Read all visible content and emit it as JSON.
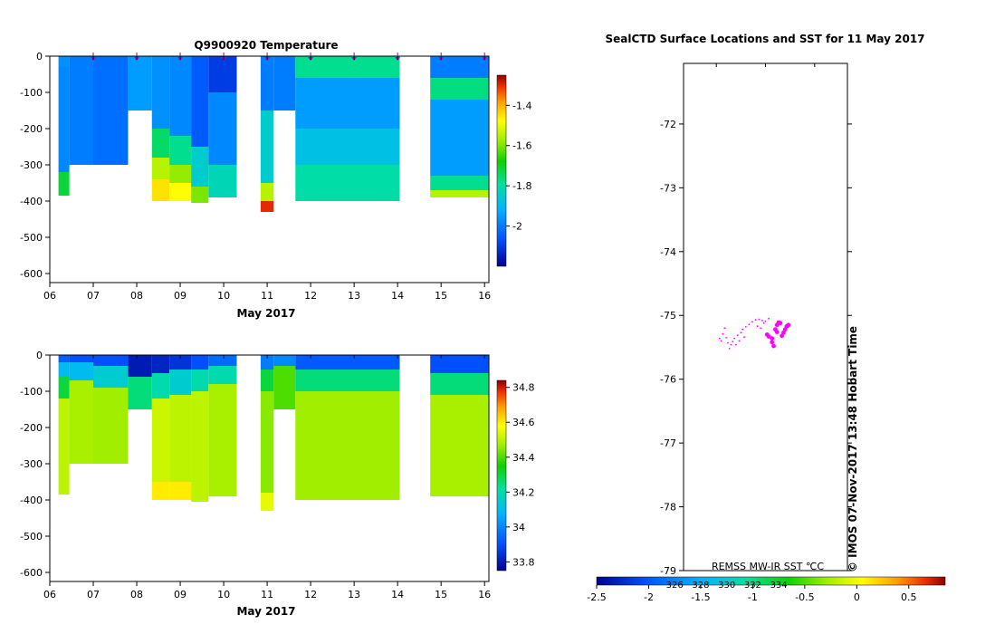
{
  "chart_data": [
    {
      "type": "heatmap",
      "title": "Q9900920  Temperature",
      "xlabel": "May 2017",
      "ylabel": "",
      "x_ticks": [
        "06",
        "07",
        "08",
        "09",
        "10",
        "11",
        "12",
        "13",
        "14",
        "15",
        "16"
      ],
      "x_range": [
        6.0,
        16.1
      ],
      "y_ticks": [
        "0",
        "-100",
        "-200",
        "-300",
        "-400",
        "-500",
        "-600"
      ],
      "y_range": [
        -625,
        0
      ],
      "colorbar_ticks": [
        "-1.4",
        "-1.6",
        "-1.8",
        "-2"
      ],
      "colorbar_range": [
        -2.2,
        -1.25
      ],
      "profile_markers": [
        7.0,
        8.0,
        9.0,
        10.0,
        11.0,
        12.0,
        13.0,
        14.0,
        15.0,
        16.0
      ],
      "profiles": [
        {
          "x0": 6.2,
          "x1": 6.45,
          "max_depth": 385,
          "layers": [
            [
              0,
              30,
              -1.97
            ],
            [
              30,
              320,
              -1.98
            ],
            [
              320,
              385,
              -1.72
            ]
          ]
        },
        {
          "x0": 6.45,
          "x1": 7.0,
          "max_depth": 300,
          "layers": [
            [
              0,
              300,
              -2.0
            ]
          ]
        },
        {
          "x0": 7.0,
          "x1": 7.8,
          "max_depth": 300,
          "layers": [
            [
              0,
              300,
              -2.02
            ]
          ]
        },
        {
          "x0": 7.8,
          "x1": 8.35,
          "max_depth": 150,
          "layers": [
            [
              0,
              150,
              -1.95
            ]
          ]
        },
        {
          "x0": 8.35,
          "x1": 8.75,
          "max_depth": 400,
          "layers": [
            [
              0,
              200,
              -1.97
            ],
            [
              200,
              280,
              -1.75
            ],
            [
              280,
              340,
              -1.55
            ],
            [
              340,
              400,
              -1.45
            ]
          ]
        },
        {
          "x0": 8.75,
          "x1": 9.25,
          "max_depth": 400,
          "layers": [
            [
              0,
              220,
              -1.98
            ],
            [
              220,
              300,
              -1.78
            ],
            [
              300,
              350,
              -1.58
            ],
            [
              350,
              400,
              -1.48
            ]
          ]
        },
        {
          "x0": 9.25,
          "x1": 9.65,
          "max_depth": 405,
          "layers": [
            [
              0,
              250,
              -2.05
            ],
            [
              250,
              360,
              -1.85
            ],
            [
              360,
              405,
              -1.6
            ]
          ]
        },
        {
          "x0": 9.65,
          "x1": 10.3,
          "max_depth": 390,
          "layers": [
            [
              0,
              100,
              -2.1
            ],
            [
              100,
              300,
              -1.98
            ],
            [
              300,
              390,
              -1.82
            ]
          ]
        },
        {
          "x0": 10.85,
          "x1": 11.15,
          "max_depth": 430,
          "layers": [
            [
              0,
              150,
              -2.0
            ],
            [
              150,
              350,
              -1.85
            ],
            [
              350,
              400,
              -1.55
            ],
            [
              400,
              430,
              -1.3
            ]
          ]
        },
        {
          "x0": 11.15,
          "x1": 11.65,
          "max_depth": 150,
          "layers": [
            [
              0,
              150,
              -2.0
            ]
          ]
        },
        {
          "x0": 11.65,
          "x1": 14.05,
          "max_depth": 400,
          "layers": [
            [
              0,
              60,
              -1.78
            ],
            [
              60,
              200,
              -1.95
            ],
            [
              200,
              300,
              -1.88
            ],
            [
              300,
              400,
              -1.8
            ]
          ]
        },
        {
          "x0": 14.75,
          "x1": 16.15,
          "max_depth": 390,
          "layers": [
            [
              0,
              60,
              -2.0
            ],
            [
              60,
              120,
              -1.77
            ],
            [
              120,
              330,
              -1.95
            ],
            [
              330,
              370,
              -1.78
            ],
            [
              370,
              390,
              -1.55
            ]
          ]
        }
      ]
    },
    {
      "type": "heatmap",
      "title": "",
      "xlabel": "May 2017",
      "ylabel": "",
      "x_ticks": [
        "06",
        "07",
        "08",
        "09",
        "10",
        "11",
        "12",
        "13",
        "14",
        "15",
        "16"
      ],
      "x_range": [
        6.0,
        16.1
      ],
      "y_ticks": [
        "0",
        "-100",
        "-200",
        "-300",
        "-400",
        "-500",
        "-600"
      ],
      "y_range": [
        -625,
        0
      ],
      "colorbar_ticks": [
        "34.8",
        "34.6",
        "34.4",
        "34.2",
        "34",
        "33.8"
      ],
      "colorbar_range": [
        33.75,
        34.84
      ],
      "profiles": [
        {
          "x0": 6.2,
          "x1": 6.45,
          "max_depth": 385,
          "layers": [
            [
              0,
              20,
              33.93
            ],
            [
              20,
              60,
              34.1
            ],
            [
              60,
              120,
              34.3
            ],
            [
              120,
              385,
              34.5
            ]
          ]
        },
        {
          "x0": 6.45,
          "x1": 7.0,
          "max_depth": 300,
          "layers": [
            [
              0,
              20,
              33.9
            ],
            [
              20,
              70,
              34.1
            ],
            [
              70,
              300,
              34.48
            ]
          ]
        },
        {
          "x0": 7.0,
          "x1": 7.8,
          "max_depth": 300,
          "layers": [
            [
              0,
              30,
              33.9
            ],
            [
              30,
              90,
              34.15
            ],
            [
              90,
              300,
              34.47
            ]
          ]
        },
        {
          "x0": 7.8,
          "x1": 8.35,
          "max_depth": 150,
          "layers": [
            [
              0,
              60,
              33.8
            ],
            [
              60,
              150,
              34.25
            ]
          ]
        },
        {
          "x0": 8.35,
          "x1": 8.75,
          "max_depth": 400,
          "layers": [
            [
              0,
              50,
              33.82
            ],
            [
              50,
              120,
              34.2
            ],
            [
              120,
              350,
              34.52
            ],
            [
              350,
              400,
              34.6
            ]
          ]
        },
        {
          "x0": 8.75,
          "x1": 9.25,
          "max_depth": 400,
          "layers": [
            [
              0,
              40,
              33.85
            ],
            [
              40,
              110,
              34.15
            ],
            [
              110,
              350,
              34.5
            ],
            [
              350,
              400,
              34.6
            ]
          ]
        },
        {
          "x0": 9.25,
          "x1": 9.65,
          "max_depth": 405,
          "layers": [
            [
              0,
              40,
              33.9
            ],
            [
              40,
              100,
              34.2
            ],
            [
              100,
              405,
              34.5
            ]
          ]
        },
        {
          "x0": 9.65,
          "x1": 10.3,
          "max_depth": 390,
          "layers": [
            [
              0,
              30,
              33.95
            ],
            [
              30,
              80,
              34.2
            ],
            [
              80,
              390,
              34.48
            ]
          ]
        },
        {
          "x0": 10.85,
          "x1": 11.15,
          "max_depth": 430,
          "layers": [
            [
              0,
              40,
              33.98
            ],
            [
              40,
              100,
              34.3
            ],
            [
              100,
              380,
              34.45
            ],
            [
              380,
              430,
              34.55
            ]
          ]
        },
        {
          "x0": 11.15,
          "x1": 11.65,
          "max_depth": 150,
          "layers": [
            [
              0,
              30,
              34.0
            ],
            [
              30,
              150,
              34.4
            ]
          ]
        },
        {
          "x0": 11.65,
          "x1": 14.05,
          "max_depth": 400,
          "layers": [
            [
              0,
              40,
              33.92
            ],
            [
              40,
              100,
              34.25
            ],
            [
              100,
              400,
              34.47
            ]
          ]
        },
        {
          "x0": 14.75,
          "x1": 16.15,
          "max_depth": 390,
          "layers": [
            [
              0,
              50,
              33.9
            ],
            [
              50,
              110,
              34.25
            ],
            [
              110,
              390,
              34.48
            ]
          ]
        }
      ]
    },
    {
      "type": "scatter",
      "title": "SealCTD Surface Locations and SST for 11 May 2017",
      "xlabel": "",
      "ylabel": "",
      "y_ticks": [
        "-72",
        "-73",
        "-74",
        "-75",
        "-76",
        "-77",
        "-78",
        "-79"
      ],
      "y_range": [
        -79,
        -71.05
      ],
      "x_range": [
        0,
        1
      ],
      "credit": "© IMOS 07-Nov-2017 13:48 Hobart Time",
      "colorbar_label": "REMSS MW-IR SST ℃C",
      "colorbar_ticks": [
        "-2.5",
        "-2",
        "-1.5",
        "-1",
        "-0.5",
        "0",
        "0.5"
      ],
      "colorbar_range": [
        -2.5,
        0.85
      ],
      "colorbar_overlay_ticks": [
        "326",
        "328",
        "330",
        "332",
        "334"
      ],
      "colorbar_overlay_values": [
        -1.75,
        -1.5,
        -1.25,
        -1.0,
        -0.75
      ],
      "point_color": "#ff00ff",
      "track_points": [
        [
          0.22,
          -75.36
        ],
        [
          0.23,
          -75.4
        ],
        [
          0.24,
          -75.29
        ],
        [
          0.25,
          -75.2
        ],
        [
          0.26,
          -75.35
        ],
        [
          0.27,
          -75.43
        ],
        [
          0.28,
          -75.52
        ],
        [
          0.29,
          -75.46
        ],
        [
          0.3,
          -75.41
        ],
        [
          0.31,
          -75.36
        ],
        [
          0.33,
          -75.31
        ],
        [
          0.35,
          -75.27
        ],
        [
          0.36,
          -75.22
        ],
        [
          0.38,
          -75.18
        ],
        [
          0.4,
          -75.14
        ],
        [
          0.42,
          -75.1
        ],
        [
          0.44,
          -75.07
        ],
        [
          0.46,
          -75.06
        ],
        [
          0.48,
          -75.08
        ],
        [
          0.49,
          -75.12
        ],
        [
          0.5,
          -75.09
        ],
        [
          0.52,
          -75.05
        ],
        [
          0.45,
          -75.17
        ],
        [
          0.47,
          -75.2
        ],
        [
          0.37,
          -75.34
        ],
        [
          0.34,
          -75.4
        ],
        [
          0.32,
          -75.46
        ]
      ],
      "points": [
        [
          0.51,
          -75.3
        ],
        [
          0.52,
          -75.33
        ],
        [
          0.54,
          -75.36
        ],
        [
          0.56,
          -75.22
        ],
        [
          0.57,
          -75.15
        ],
        [
          0.58,
          -75.11
        ],
        [
          0.59,
          -75.12
        ],
        [
          0.55,
          -75.48
        ],
        [
          0.54,
          -75.42
        ],
        [
          0.57,
          -75.26
        ],
        [
          0.61,
          -75.27
        ],
        [
          0.62,
          -75.22
        ],
        [
          0.63,
          -75.17
        ],
        [
          0.64,
          -75.15
        ],
        [
          0.6,
          -75.32
        ]
      ]
    }
  ]
}
